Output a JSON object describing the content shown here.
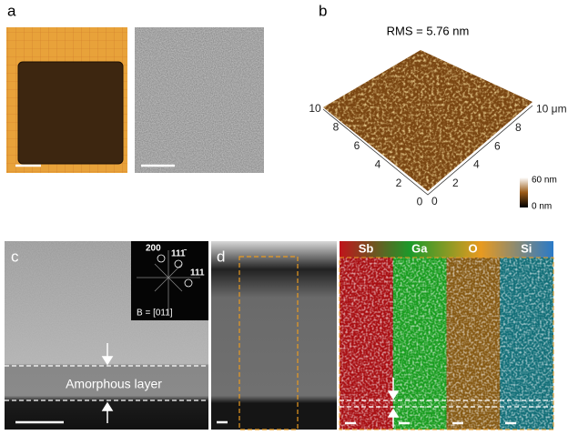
{
  "panel_a": {
    "label": "a"
  },
  "panel_b": {
    "label": "b",
    "title": "RMS = 5.76 nm",
    "left_axis_labels": [
      "10",
      "8",
      "6",
      "4",
      "2",
      "0"
    ],
    "right_axis_labels": [
      "0",
      "2",
      "4",
      "6",
      "8",
      "10 μm"
    ],
    "colorbar": {
      "max_label": "60 nm",
      "min_label": "0 nm"
    }
  },
  "panel_c": {
    "label": "c",
    "inset": {
      "spot_labels": [
        "200",
        "111̄",
        "111"
      ],
      "zone_axis": "B = [011]"
    },
    "layer_label": "Amorphous layer"
  },
  "panel_d": {
    "label": "d"
  },
  "eds_maps": {
    "element_labels": [
      "Sb",
      "Ga",
      "O",
      "Si"
    ]
  }
}
